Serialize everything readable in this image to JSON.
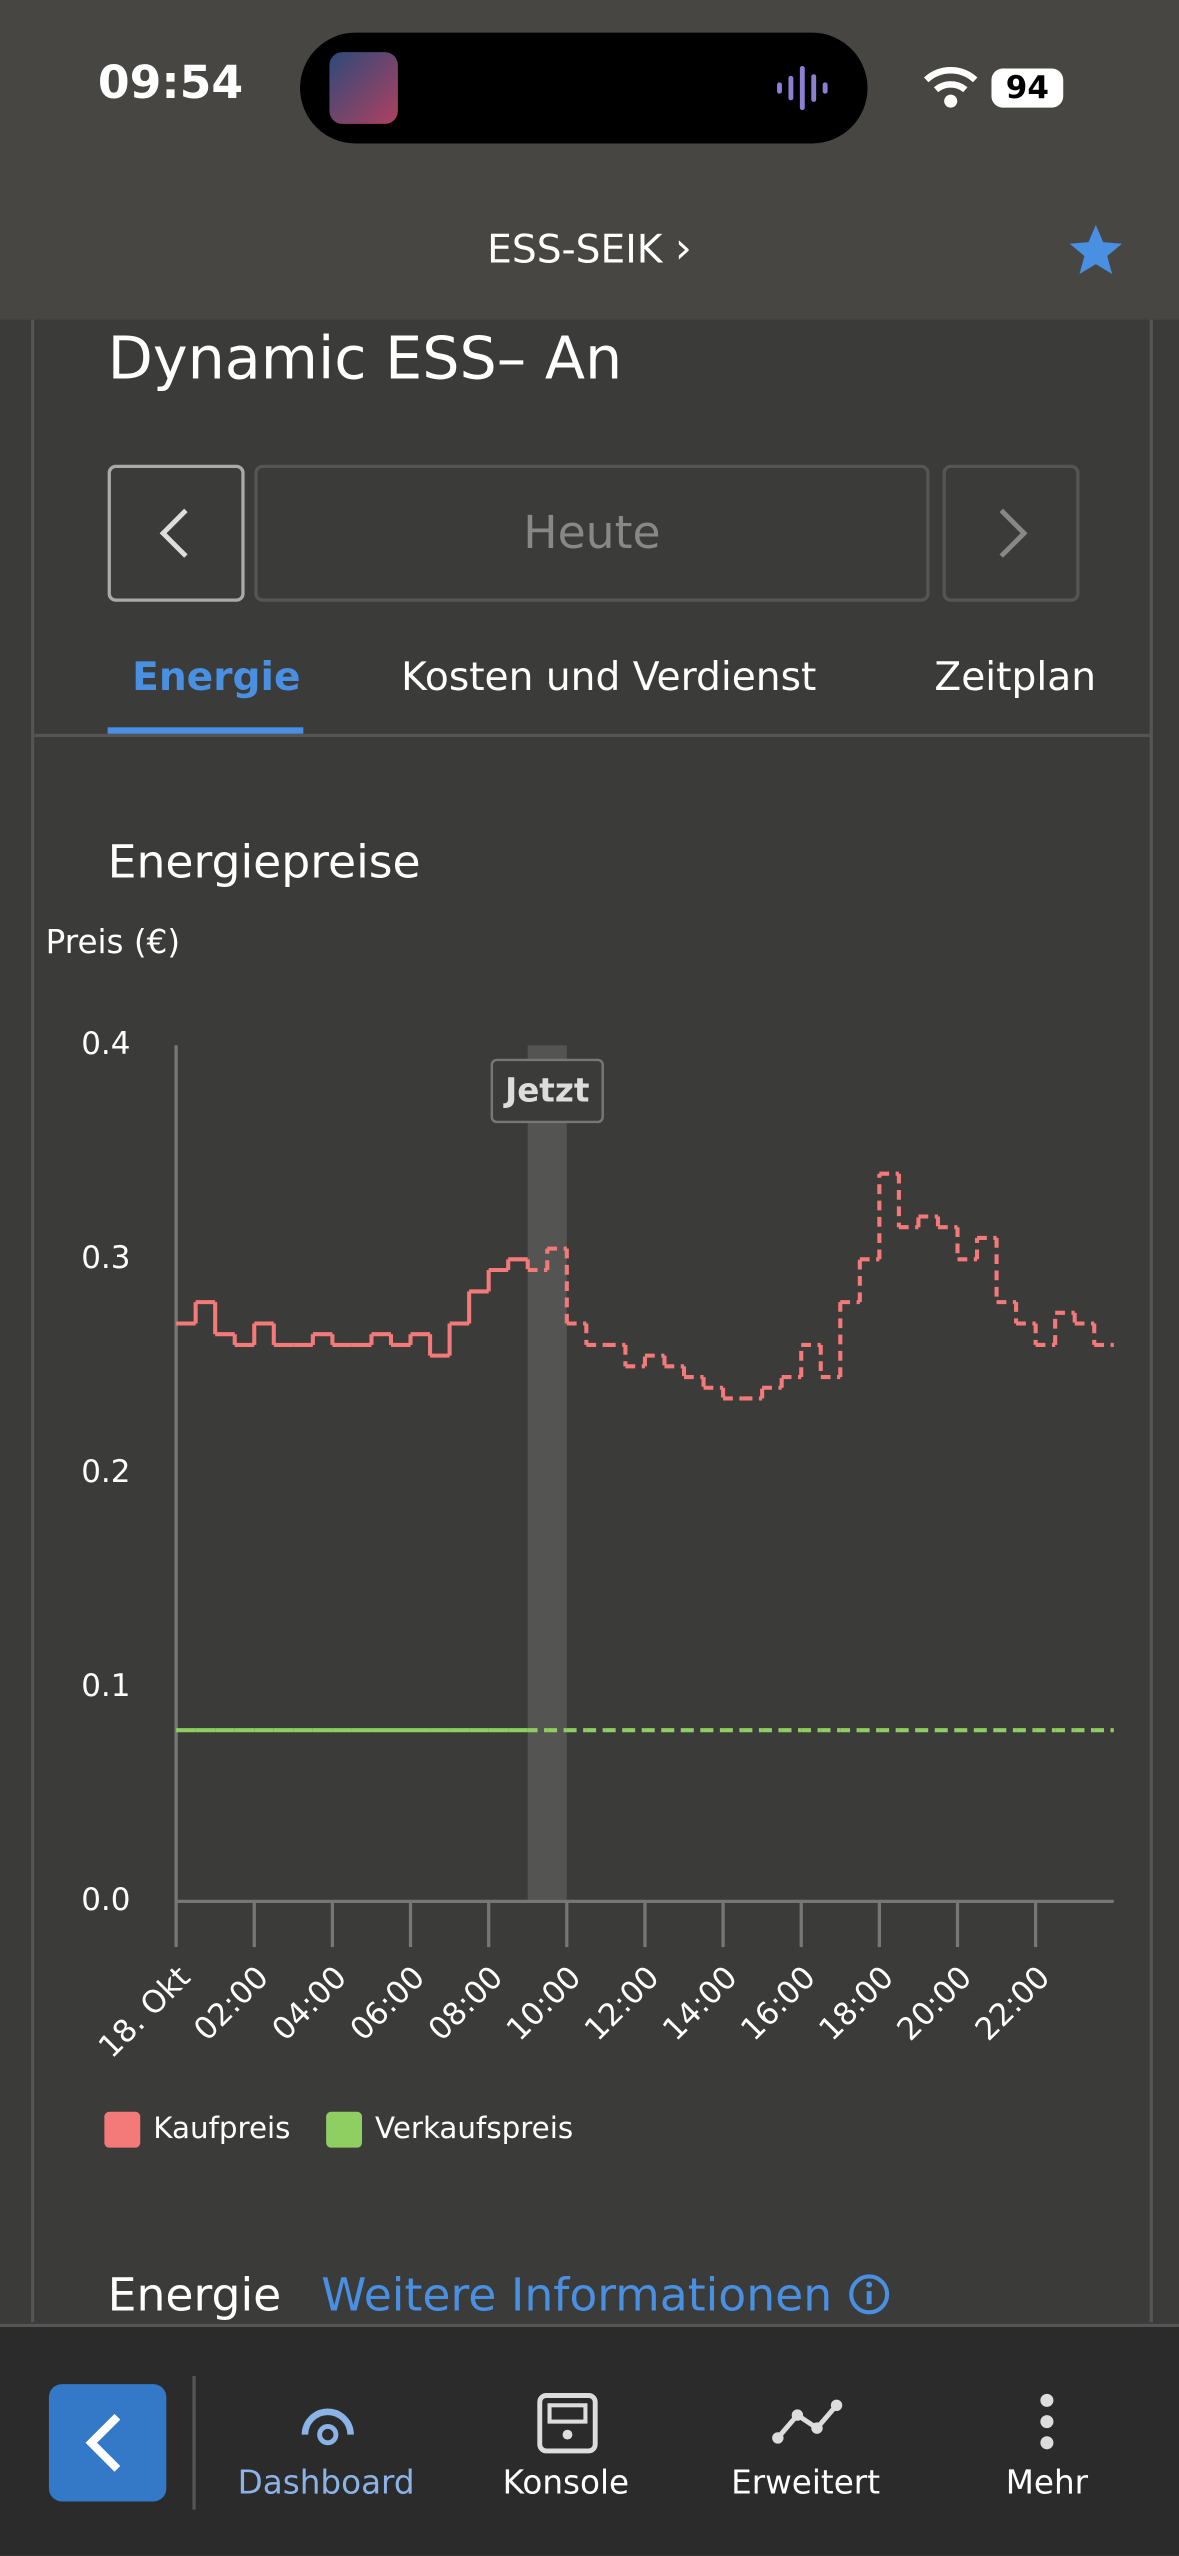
{
  "status_bar": {
    "time": "09:54",
    "battery": "94"
  },
  "header": {
    "title": "ESS-SEIK"
  },
  "page": {
    "heading": "Dynamic ESS– An",
    "date_label": "Heute",
    "tabs": [
      "Energie",
      "Kosten und Verdienst",
      "Zeitplan"
    ],
    "section_title": "Energiepreise"
  },
  "chart_data": {
    "type": "step",
    "y_label": "Preis (€)",
    "annotation": "Jetzt",
    "now_band": [
      9,
      10
    ],
    "x": [
      0,
      0.5,
      1,
      1.5,
      2,
      2.5,
      3,
      3.5,
      4,
      4.5,
      5,
      5.5,
      6,
      6.5,
      7,
      7.5,
      8,
      8.5,
      9,
      9.5,
      10,
      10.5,
      11,
      11.5,
      12,
      12.5,
      13,
      13.5,
      14,
      14.5,
      15,
      15.5,
      16,
      16.5,
      17,
      17.5,
      18,
      18.5,
      19,
      19.5,
      20,
      20.5,
      21,
      21.5,
      22,
      22.5,
      23,
      23.5
    ],
    "series": [
      {
        "name": "Kaufpreis",
        "color": "#f47a7a",
        "values": [
          0.27,
          0.28,
          0.265,
          0.26,
          0.27,
          0.26,
          0.26,
          0.265,
          0.26,
          0.26,
          0.265,
          0.26,
          0.265,
          0.255,
          0.27,
          0.285,
          0.295,
          0.3,
          0.295,
          0.305,
          0.27,
          0.26,
          0.26,
          0.25,
          0.255,
          0.25,
          0.245,
          0.24,
          0.235,
          0.235,
          0.24,
          0.245,
          0.26,
          0.245,
          0.28,
          0.3,
          0.34,
          0.315,
          0.32,
          0.315,
          0.3,
          0.31,
          0.28,
          0.27,
          0.26,
          0.275,
          0.27,
          0.26
        ]
      },
      {
        "name": "Verkaufspreis",
        "color": "#8fcf62",
        "values": [
          0.08,
          0.08,
          0.08,
          0.08,
          0.08,
          0.08,
          0.08,
          0.08,
          0.08,
          0.08,
          0.08,
          0.08,
          0.08,
          0.08,
          0.08,
          0.08,
          0.08,
          0.08,
          0.08,
          0.08,
          0.08,
          0.08,
          0.08,
          0.08,
          0.08,
          0.08,
          0.08,
          0.08,
          0.08,
          0.08,
          0.08,
          0.08,
          0.08,
          0.08,
          0.08,
          0.08,
          0.08,
          0.08,
          0.08,
          0.08,
          0.08,
          0.08,
          0.08,
          0.08,
          0.08,
          0.08,
          0.08,
          0.08
        ]
      }
    ],
    "xlim": [
      0,
      24
    ],
    "xticks": [
      {
        "value": 0,
        "label": "18. Okt"
      },
      {
        "value": 2,
        "label": "02:00"
      },
      {
        "value": 4,
        "label": "04:00"
      },
      {
        "value": 6,
        "label": "06:00"
      },
      {
        "value": 8,
        "label": "08:00"
      },
      {
        "value": 10,
        "label": "10:00"
      },
      {
        "value": 12,
        "label": "12:00"
      },
      {
        "value": 14,
        "label": "14:00"
      },
      {
        "value": 16,
        "label": "16:00"
      },
      {
        "value": 18,
        "label": "18:00"
      },
      {
        "value": 20,
        "label": "20:00"
      },
      {
        "value": 22,
        "label": "22:00"
      }
    ],
    "ylim": [
      0,
      0.4
    ],
    "yticks": [
      {
        "value": 0,
        "label": "0.0"
      },
      0.1,
      0.2,
      0.3,
      0.4
    ]
  },
  "footer_section": {
    "title": "Energie",
    "link": "Weitere Informationen"
  },
  "nav": {
    "items": [
      "Dashboard",
      "Konsole",
      "Erweitert",
      "Mehr"
    ]
  }
}
